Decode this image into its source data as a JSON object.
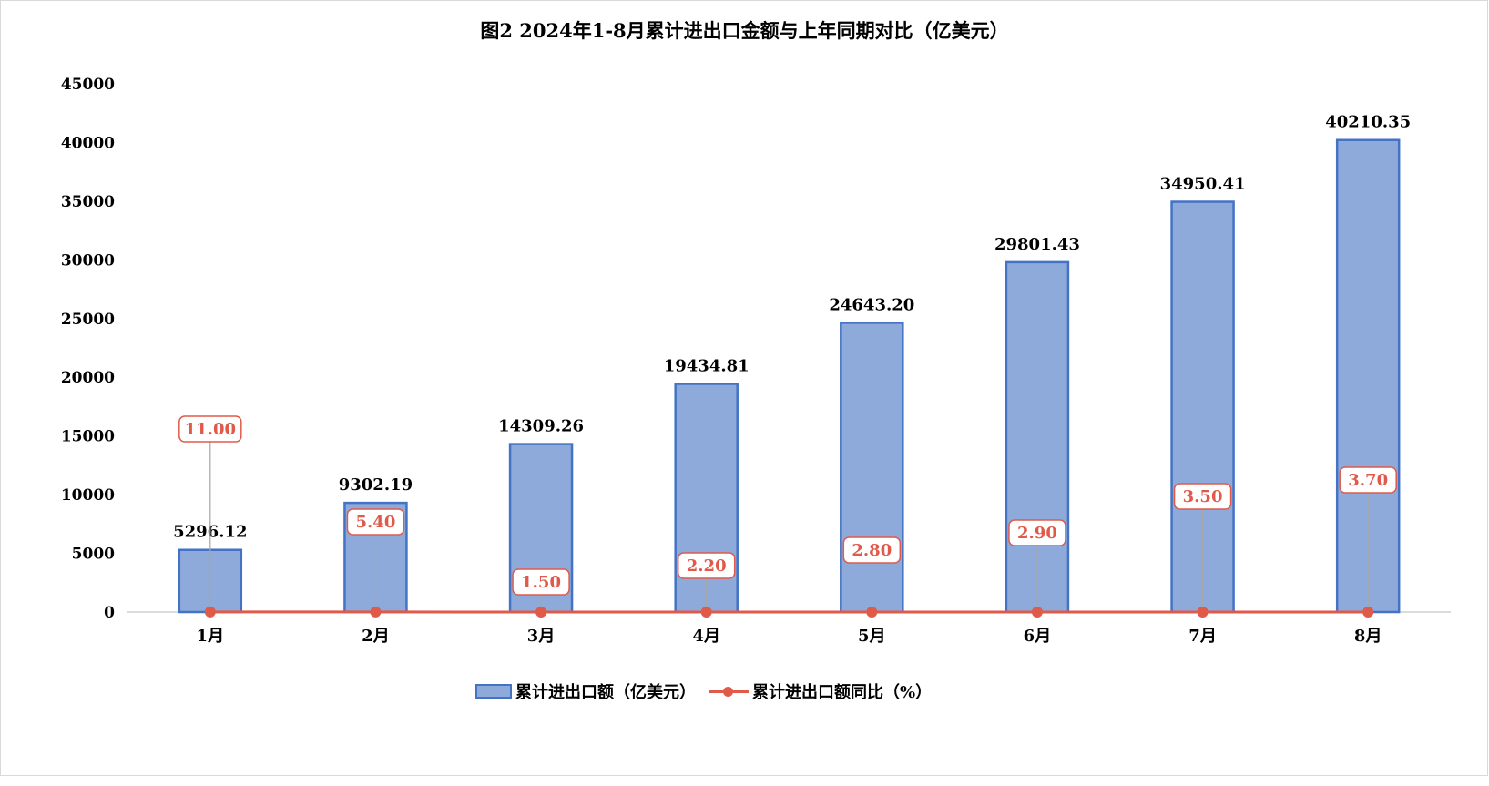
{
  "chart_data": {
    "type": "bar",
    "title": "图2 2024年1-8月累计进出口金额与上年同期对比（亿美元）",
    "categories": [
      "1月",
      "2月",
      "3月",
      "4月",
      "5月",
      "6月",
      "7月",
      "8月"
    ],
    "ylim": [
      0,
      45000
    ],
    "yticks": [
      "0",
      "5000",
      "10000",
      "15000",
      "20000",
      "25000",
      "30000",
      "35000",
      "40000",
      "45000"
    ],
    "grid": false,
    "legend_position": "bottom",
    "series": [
      {
        "name": "累计进出口额（亿美元）",
        "kind": "bar",
        "values": [
          5296.12,
          9302.19,
          14309.26,
          19434.81,
          24643.2,
          29801.43,
          34950.41,
          40210.35
        ],
        "labels": [
          "5296.12",
          "9302.19",
          "14309.26",
          "19434.81",
          "24643.20",
          "29801.43",
          "34950.41",
          "40210.35"
        ],
        "color": "#8eaadb",
        "edge_color": "#4472c4"
      },
      {
        "name": "累计进出口额同比（%）",
        "kind": "line",
        "values": [
          11.0,
          5.4,
          1.5,
          2.2,
          2.8,
          2.9,
          3.5,
          3.7
        ],
        "labels": [
          "11.00",
          "5.40",
          "1.50",
          "2.20",
          "2.80",
          "2.90",
          "3.50",
          "3.70"
        ],
        "color": "#e05a4a"
      }
    ]
  }
}
